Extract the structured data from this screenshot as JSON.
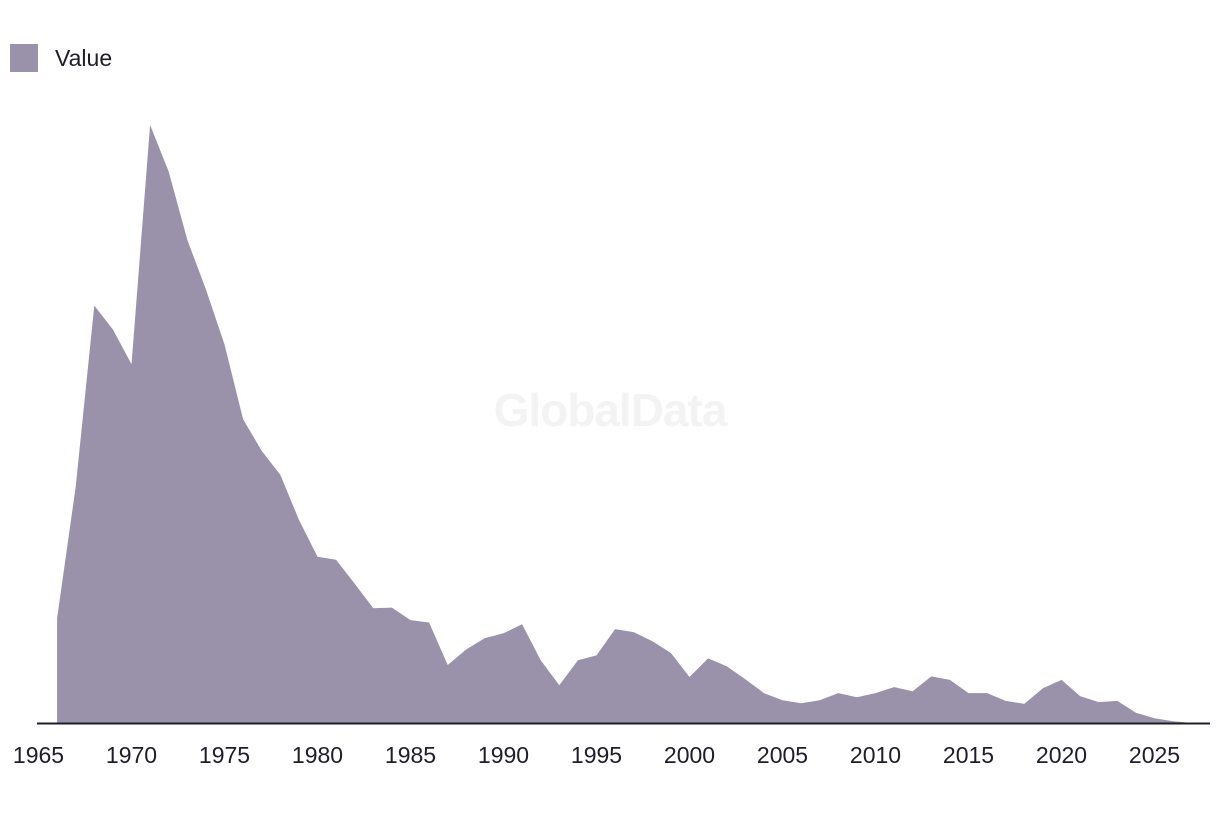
{
  "chart_data": {
    "type": "area",
    "title": "",
    "xlabel": "",
    "ylabel": "",
    "legend": {
      "placement": "top-left",
      "entries": [
        "Value"
      ]
    },
    "grid": false,
    "xlim": [
      1965,
      2027
    ],
    "ylim": [
      0,
      100
    ],
    "x_ticks": [
      "1965",
      "1970",
      "1975",
      "1980",
      "1985",
      "1990",
      "1995",
      "2000",
      "2005",
      "2010",
      "2015",
      "2020",
      "2025"
    ],
    "x": [
      1966,
      1967,
      1968,
      1969,
      1970,
      1971,
      1972,
      1973,
      1974,
      1975,
      1976,
      1977,
      1978,
      1979,
      1980,
      1981,
      1982,
      1983,
      1984,
      1985,
      1986,
      1987,
      1988,
      1989,
      1990,
      1991,
      1992,
      1993,
      1994,
      1995,
      1996,
      1997,
      1998,
      1999,
      2000,
      2001,
      2002,
      2003,
      2004,
      2005,
      2006,
      2007,
      2008,
      2009,
      2010,
      2011,
      2012,
      2013,
      2014,
      2015,
      2016,
      2017,
      2018,
      2019,
      2020,
      2021,
      2022,
      2023,
      2024,
      2025,
      2026,
      2027
    ],
    "series": [
      {
        "name": "Value",
        "color": "#9a91aa",
        "values": [
          17.5,
          39.5,
          69.8,
          65.8,
          60.0,
          100.0,
          92.2,
          80.8,
          72.5,
          63.3,
          50.8,
          45.5,
          41.5,
          34.0,
          27.8,
          27.3,
          23.3,
          19.2,
          19.3,
          17.2,
          16.8,
          9.7,
          12.3,
          14.2,
          15.0,
          16.5,
          10.5,
          6.3,
          10.5,
          11.3,
          15.7,
          15.2,
          13.7,
          11.7,
          7.7,
          10.8,
          9.5,
          7.3,
          5.0,
          3.8,
          3.3,
          3.8,
          5.0,
          4.3,
          5.0,
          6.0,
          5.3,
          7.8,
          7.2,
          5.0,
          5.0,
          3.7,
          3.2,
          5.8,
          7.2,
          4.5,
          3.5,
          3.7,
          1.7,
          0.8,
          0.3,
          0.0
        ]
      }
    ]
  },
  "watermark": "GlobalData",
  "legend_swatch_color": "#9a91aa",
  "axis_color": "#1d1d2b"
}
